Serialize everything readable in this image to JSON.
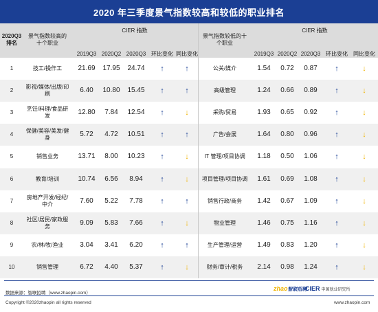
{
  "title": "2020 年三季度景气指数较高和较低的职业排名",
  "header": {
    "rank_line1": "2020Q3",
    "rank_line2": "排名",
    "high_job": "景气指数较高的十个职业",
    "cier_left": "CIER 指数",
    "low_job": "景气指数较低的十个职业",
    "cier_right": "CIER 指数",
    "col_2019q3": "2019Q3",
    "col_2020q2": "2020Q2",
    "col_2020q3": "2020Q3",
    "col_yoy_ring": "环比变化",
    "col_yoy": "同比变化"
  },
  "colors": {
    "title_bg": "#1b3f94",
    "up_arrow": "#1b3f94",
    "down_arrow": "#f0b400"
  },
  "chart_data": {
    "type": "table",
    "title": "2020 年三季度景气指数较高和较低的职业排名",
    "columns": [
      "2020Q3排名",
      "景气指数较高的十个职业",
      "2019Q3",
      "2020Q2",
      "2020Q3",
      "环比变化",
      "同比变化",
      "景气指数较低的十个职业",
      "2019Q3",
      "2020Q2",
      "2020Q3",
      "环比变化",
      "同比变化"
    ],
    "rows": [
      {
        "rank": "1",
        "high": "技工/操作工",
        "h19": "21.69",
        "h20q2": "17.95",
        "h20q3": "24.74",
        "h_ring": "up",
        "h_yoy": "up",
        "low": "公关/媒介",
        "l19": "1.54",
        "l20q2": "0.72",
        "l20q3": "0.87",
        "l_ring": "up",
        "l_yoy": "down"
      },
      {
        "rank": "2",
        "high": "影视/媒体/出版/印刷",
        "h19": "6.40",
        "h20q2": "10.80",
        "h20q3": "15.45",
        "h_ring": "up",
        "h_yoy": "up",
        "low": "高级管理",
        "l19": "1.24",
        "l20q2": "0.66",
        "l20q3": "0.89",
        "l_ring": "up",
        "l_yoy": "down"
      },
      {
        "rank": "3",
        "high": "烹饪/料理/食品研发",
        "h19": "12.80",
        "h20q2": "7.84",
        "h20q3": "12.54",
        "h_ring": "up",
        "h_yoy": "down",
        "low": "采购/贸易",
        "l19": "1.93",
        "l20q2": "0.65",
        "l20q3": "0.92",
        "l_ring": "up",
        "l_yoy": "down"
      },
      {
        "rank": "4",
        "high": "保健/美容/美发/健身",
        "h19": "5.72",
        "h20q2": "4.72",
        "h20q3": "10.51",
        "h_ring": "up",
        "h_yoy": "up",
        "low": "广告/会展",
        "l19": "1.64",
        "l20q2": "0.80",
        "l20q3": "0.96",
        "l_ring": "up",
        "l_yoy": "down"
      },
      {
        "rank": "5",
        "high": "销售业务",
        "h19": "13.71",
        "h20q2": "8.00",
        "h20q3": "10.23",
        "h_ring": "up",
        "h_yoy": "down",
        "low": "IT 管理/项目协调",
        "l19": "1.18",
        "l20q2": "0.50",
        "l20q3": "1.06",
        "l_ring": "up",
        "l_yoy": "down"
      },
      {
        "rank": "6",
        "high": "教育/培训",
        "h19": "10.74",
        "h20q2": "6.56",
        "h20q3": "8.94",
        "h_ring": "up",
        "h_yoy": "down",
        "low": "项目管理/项目协调",
        "l19": "1.61",
        "l20q2": "0.69",
        "l20q3": "1.08",
        "l_ring": "up",
        "l_yoy": "down"
      },
      {
        "rank": "7",
        "high": "房地产开发/经纪/中介",
        "h19": "7.60",
        "h20q2": "5.22",
        "h20q3": "7.78",
        "h_ring": "up",
        "h_yoy": "up",
        "low": "销售行政/商务",
        "l19": "1.42",
        "l20q2": "0.67",
        "l20q3": "1.09",
        "l_ring": "up",
        "l_yoy": "down"
      },
      {
        "rank": "8",
        "high": "社区/居民/家政服务",
        "h19": "9.09",
        "h20q2": "5.83",
        "h20q3": "7.66",
        "h_ring": "up",
        "h_yoy": "down",
        "low": "物业管理",
        "l19": "1.46",
        "l20q2": "0.75",
        "l20q3": "1.16",
        "l_ring": "up",
        "l_yoy": "down"
      },
      {
        "rank": "9",
        "high": "农/林/牧/渔业",
        "h19": "3.04",
        "h20q2": "3.41",
        "h20q3": "6.20",
        "h_ring": "up",
        "h_yoy": "up",
        "low": "生产管理/运营",
        "l19": "1.49",
        "l20q2": "0.83",
        "l20q3": "1.20",
        "l_ring": "up",
        "l_yoy": "down"
      },
      {
        "rank": "10",
        "high": "销售管理",
        "h19": "6.72",
        "h20q2": "4.40",
        "h20q3": "5.37",
        "h_ring": "up",
        "h_yoy": "down",
        "low": "财务/审计/税务",
        "l19": "2.14",
        "l20q2": "0.98",
        "l20q3": "1.24",
        "l_ring": "up",
        "l_yoy": "down"
      }
    ]
  },
  "footer": {
    "source": "数据来源：智联招聘（www.zhaopin.com）",
    "copyright": "Copyright ©2020zhaopin all rights reserved",
    "url": "www.zhaopin.com",
    "logo_zhaopin_a": "zhao",
    "logo_zhaopin_b": "智联招聘",
    "logo_cier": "CIER",
    "logo_cier_sub": "中国就业研究所"
  }
}
